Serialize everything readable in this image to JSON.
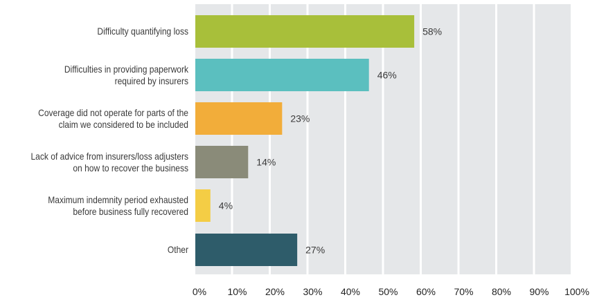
{
  "chart_data": {
    "type": "bar",
    "orientation": "horizontal",
    "title": "",
    "xlabel": "",
    "ylabel": "",
    "xlim": [
      0,
      100
    ],
    "grid": true,
    "categories": [
      [
        "Difficulty quantifying loss"
      ],
      [
        "Difficulties in providing paperwork",
        "required by insurers"
      ],
      [
        "Coverage did not operate for parts of the",
        "claim we considered to be included"
      ],
      [
        "Lack of advice from insurers/loss adjusters",
        "on how to recover the business"
      ],
      [
        "Maximum indemnity period exhausted",
        "before business fully recovered"
      ],
      [
        "Other"
      ]
    ],
    "values": [
      58,
      46,
      23,
      14,
      4,
      27
    ],
    "data_labels": [
      "58%",
      "46%",
      "23%",
      "14%",
      "4%",
      "27%"
    ],
    "colors": [
      "#a8bf3a",
      "#5bbfbf",
      "#f2ad3a",
      "#8a8b79",
      "#f4cd45",
      "#2e5c6a"
    ],
    "x_ticks": [
      0,
      10,
      20,
      30,
      40,
      50,
      60,
      70,
      80,
      90,
      100
    ],
    "x_tick_labels": [
      "0%",
      "10%",
      "20%",
      "30%",
      "40%",
      "50%",
      "60%",
      "70%",
      "80%",
      "90%",
      "100%"
    ],
    "background_color": "#e5e7e9"
  }
}
